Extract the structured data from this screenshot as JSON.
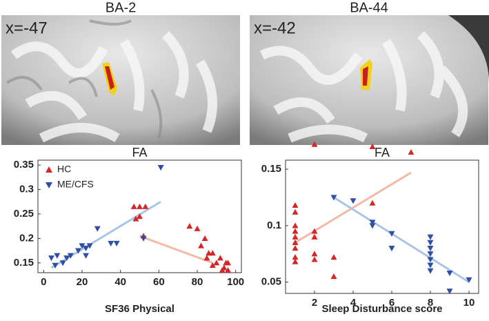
{
  "images": [
    {
      "title": "BA-2",
      "label": "x=-47"
    },
    {
      "title": "BA-44",
      "label": "x=-42"
    }
  ],
  "chart_data": [
    {
      "type": "scatter",
      "title": "FA",
      "x_label": "SF36 Physical",
      "legend": "upper left",
      "xlim": [
        -3,
        103
      ],
      "ylim": [
        0.13,
        0.36
      ],
      "xticks": [
        0,
        20,
        40,
        60,
        80,
        100
      ],
      "yticks": [
        0.15,
        0.2,
        0.25,
        0.3,
        0.35
      ],
      "series": [
        {
          "name": "HC",
          "color": "#d62728",
          "marker": "triangle-up",
          "x": [
            47,
            50,
            53,
            48,
            50,
            52,
            76,
            80,
            84,
            82,
            86,
            85,
            88,
            90,
            92,
            94,
            95,
            96,
            93,
            96,
            88
          ],
          "y": [
            0.265,
            0.265,
            0.265,
            0.24,
            0.245,
            0.205,
            0.225,
            0.22,
            0.2,
            0.185,
            0.17,
            0.16,
            0.17,
            0.15,
            0.16,
            0.14,
            0.15,
            0.15,
            0.135,
            0.135,
            0.145
          ],
          "fit": {
            "x": [
              50,
              88
            ],
            "y": [
              0.205,
              0.15
            ],
            "color": "#f4b9a4"
          }
        },
        {
          "name": "ME/CFS",
          "color": "#2e4fa8",
          "marker": "triangle-down",
          "x": [
            4,
            6,
            7,
            10,
            12,
            14,
            18,
            20,
            22,
            24,
            22,
            28,
            35,
            38,
            52,
            61
          ],
          "y": [
            0.16,
            0.145,
            0.165,
            0.15,
            0.16,
            0.165,
            0.175,
            0.185,
            0.18,
            0.185,
            0.165,
            0.22,
            0.19,
            0.19,
            0.2,
            0.345
          ],
          "fit": {
            "x": [
              4,
              61
            ],
            "y": [
              0.14,
              0.275
            ],
            "color": "#a9c4e4"
          }
        }
      ]
    },
    {
      "type": "scatter",
      "title": "FA",
      "x_label": "Sleep Disturbance score",
      "legend": false,
      "xlim": [
        0.5,
        10.5
      ],
      "ylim": [
        0.04,
        0.158
      ],
      "xticks": [
        2,
        4,
        6,
        8,
        10
      ],
      "yticks": [
        0.05,
        0.1,
        0.15
      ],
      "series": [
        {
          "name": "HC",
          "color": "#d62728",
          "marker": "triangle-up",
          "x": [
            1,
            1,
            1,
            1,
            1,
            1,
            1,
            1,
            1,
            2,
            2,
            2,
            2,
            2,
            3,
            3,
            5,
            5,
            7
          ],
          "y": [
            0.118,
            0.112,
            0.1,
            0.095,
            0.09,
            0.085,
            0.08,
            0.072,
            0.068,
            0.172,
            0.095,
            0.09,
            0.075,
            0.07,
            0.072,
            0.055,
            0.17,
            0.12,
            0.165
          ],
          "fit": {
            "x": [
              1,
              7
            ],
            "y": [
              0.085,
              0.147
            ],
            "color": "#f4b9a4"
          }
        },
        {
          "name": "ME/CFS",
          "color": "#2e4fa8",
          "marker": "triangle-down",
          "x": [
            3,
            4,
            5,
            5,
            6,
            6,
            8,
            8,
            8,
            8,
            8,
            8,
            8,
            9,
            9,
            10
          ],
          "y": [
            0.125,
            0.122,
            0.103,
            0.1,
            0.093,
            0.08,
            0.09,
            0.085,
            0.08,
            0.075,
            0.07,
            0.065,
            0.06,
            0.058,
            0.042,
            0.052
          ],
          "fit": {
            "x": [
              3,
              10
            ],
            "y": [
              0.125,
              0.05
            ],
            "color": "#a9c4e4"
          }
        }
      ]
    }
  ]
}
